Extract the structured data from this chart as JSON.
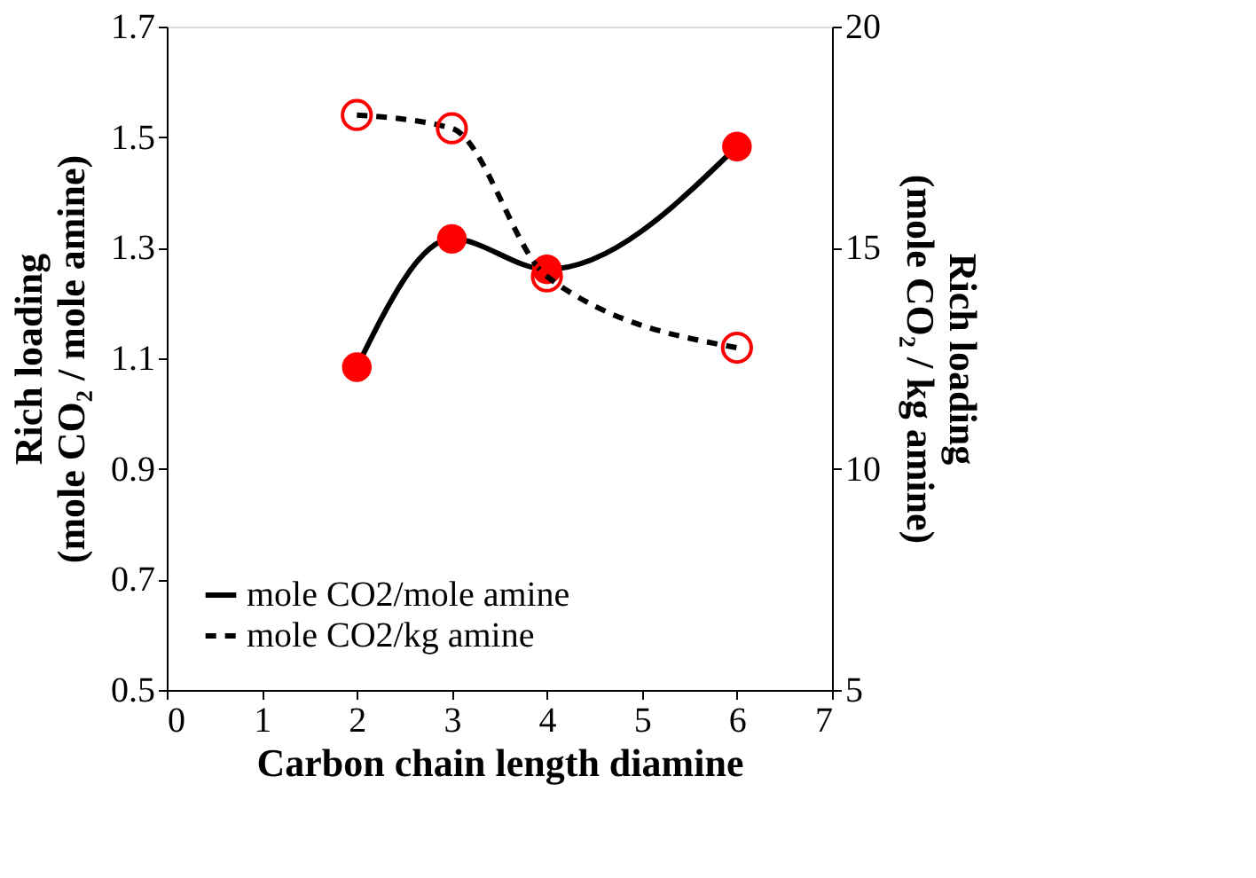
{
  "chart_data": {
    "type": "line",
    "xlabel": "Carbon chain length diamine",
    "ylabel": "Rich loading\n(mole CO₂ / mole amine)",
    "y2label": "Rich loading\n(mole CO₂ / kg amine)",
    "x": [
      2,
      3,
      4,
      6
    ],
    "series": [
      {
        "name": "mole CO2/mole amine",
        "color": "#ff0000",
        "values": [
          1.084,
          1.316,
          1.261,
          1.483
        ],
        "marker": "circle",
        "line_style": "solid"
      },
      {
        "name": "mole CO2/kg amine",
        "color": "#ff0000",
        "values": [
          18.0,
          17.7,
          14.35,
          12.74
        ],
        "marker": "circle",
        "line_style": "dashed",
        "axis": "y2"
      }
    ],
    "xlim": [
      0,
      7
    ],
    "xticks": [
      0,
      1,
      2,
      3,
      4,
      5,
      6,
      7
    ],
    "ylim": [
      0.5,
      1.7
    ],
    "yticks": [
      0.5,
      0.7,
      0.9,
      1.1,
      1.3,
      1.5,
      1.7
    ],
    "y2lim": [
      5,
      20
    ],
    "y2ticks": [
      5,
      10,
      15,
      20
    ],
    "grid": false,
    "legend": "bottom left"
  }
}
